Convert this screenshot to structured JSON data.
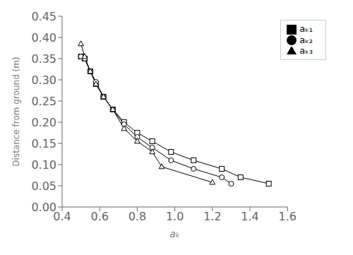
{
  "chart_data": {
    "type": "line",
    "xlabel": "aₖ",
    "ylabel": "Distance from ground (m)",
    "xlim": [
      0.4,
      1.6
    ],
    "ylim": [
      0.0,
      0.45
    ],
    "xticks": [
      0.4,
      0.6,
      0.8,
      {
        "value": 1.0,
        "label": "1.0"
      },
      1.2,
      1.4,
      1.6
    ],
    "yticks": [
      {
        "value": 0.0,
        "label": "0.00"
      },
      0.05,
      {
        "value": 0.1,
        "label": "0.10"
      },
      0.15,
      {
        "value": 0.2,
        "label": "0.20"
      },
      0.25,
      {
        "value": 0.3,
        "label": "0.30"
      },
      0.35,
      {
        "value": 0.4,
        "label": "0.40"
      },
      0.45
    ],
    "grid": false,
    "legend": "upper right",
    "series": [
      {
        "name": "aₖ₁",
        "color": "black",
        "marker": "square",
        "x": [
          0.5,
          0.52,
          0.55,
          0.58,
          0.62,
          0.67,
          0.73,
          0.8,
          0.88,
          0.98,
          1.1,
          1.25,
          1.35,
          1.5
        ],
        "values": [
          0.355,
          0.35,
          0.32,
          0.29,
          0.26,
          0.23,
          0.2,
          0.175,
          0.155,
          0.13,
          0.11,
          0.09,
          0.07,
          0.055
        ]
      },
      {
        "name": "aₖ₂",
        "color": "black",
        "marker": "circle",
        "x": [
          0.5,
          0.52,
          0.55,
          0.58,
          0.62,
          0.67,
          0.73,
          0.8,
          0.88,
          0.98,
          1.1,
          1.25,
          1.3
        ],
        "values": [
          0.355,
          0.35,
          0.32,
          0.295,
          0.26,
          0.23,
          0.195,
          0.165,
          0.14,
          0.11,
          0.09,
          0.07,
          0.055
        ]
      },
      {
        "name": "aₖ₃",
        "color": "black",
        "marker": "triangle",
        "x": [
          0.5,
          0.52,
          0.55,
          0.58,
          0.62,
          0.67,
          0.73,
          0.8,
          0.88,
          0.93,
          1.2
        ],
        "values": [
          0.385,
          0.355,
          0.32,
          0.29,
          0.26,
          0.23,
          0.185,
          0.155,
          0.13,
          0.095,
          0.058
        ]
      }
    ]
  }
}
